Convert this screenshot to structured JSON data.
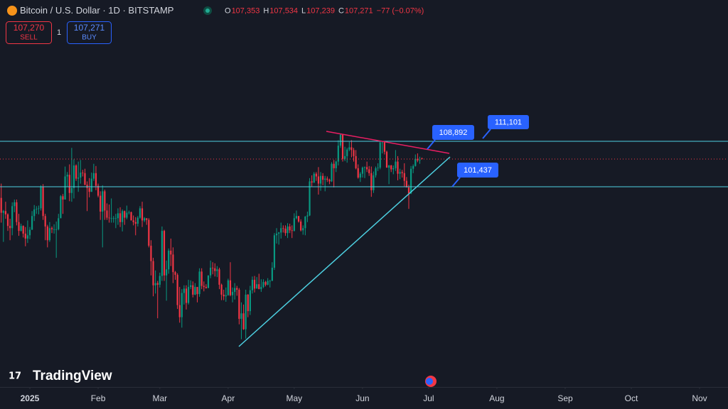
{
  "header": {
    "symbol": "Bitcoin / U.S. Dollar · 1D · BITSTAMP",
    "ohlc": [
      {
        "key": "O",
        "value": "107,353"
      },
      {
        "key": "H",
        "value": "107,534"
      },
      {
        "key": "L",
        "value": "107,239"
      },
      {
        "key": "C",
        "value": "107,271"
      }
    ],
    "change": "−77 (−0.07%)"
  },
  "trade": {
    "sell_price": "107,270",
    "sell_label": "SELL",
    "quantity": "1",
    "buy_price": "107,271",
    "buy_label": "BUY"
  },
  "callouts": [
    "108,892",
    "111,101",
    "101,437"
  ],
  "watermark": "TradingView",
  "chart_data": {
    "type": "candlestick",
    "up_color": "#089981",
    "down_color": "#f23645",
    "xlim": [
      -0.55,
      329.9
    ],
    "ylim": [
      65800,
      136200
    ],
    "xticks": [
      {
        "value": 13,
        "label": "2025"
      },
      {
        "value": 44,
        "label": "Feb"
      },
      {
        "value": 72,
        "label": "Mar"
      },
      {
        "value": 103,
        "label": "Apr"
      },
      {
        "value": 133,
        "label": "May"
      },
      {
        "value": 164,
        "label": "Jun"
      },
      {
        "value": 194,
        "label": "Jul"
      },
      {
        "value": 225,
        "label": "Aug"
      },
      {
        "value": 256,
        "label": "Sep"
      },
      {
        "value": 286,
        "label": "Oct"
      },
      {
        "value": 317,
        "label": "Nov"
      }
    ],
    "candles": [
      [
        100200,
        102800,
        95700,
        97500
      ],
      [
        97500,
        98000,
        92200,
        97800
      ],
      [
        97800,
        99500,
        96400,
        97200
      ],
      [
        97200,
        97400,
        94200,
        95100
      ],
      [
        95100,
        96400,
        92500,
        94700
      ],
      [
        94700,
        99400,
        93400,
        98700
      ],
      [
        98700,
        99900,
        97600,
        99400
      ],
      [
        99400,
        99900,
        95200,
        95800
      ],
      [
        95800,
        97300,
        93300,
        94200
      ],
      [
        94200,
        95500,
        94100,
        95100
      ],
      [
        95100,
        95200,
        93000,
        93700
      ],
      [
        93700,
        94900,
        91400,
        92800
      ],
      [
        92800,
        96100,
        92000,
        93400
      ],
      [
        93400,
        94900,
        92700,
        94400
      ],
      [
        94400,
        97800,
        94400,
        96900
      ],
      [
        96900,
        98900,
        96000,
        98100
      ],
      [
        98100,
        98700,
        97300,
        98200
      ],
      [
        98200,
        98800,
        97200,
        98300
      ],
      [
        98300,
        102500,
        97900,
        102200
      ],
      [
        102200,
        102700,
        96200,
        96900
      ],
      [
        96900,
        97300,
        92500,
        95000
      ],
      [
        95000,
        95300,
        91200,
        92500
      ],
      [
        92500,
        95800,
        92200,
        94700
      ],
      [
        94700,
        95000,
        93800,
        94500
      ],
      [
        94500,
        95400,
        93700,
        94500
      ],
      [
        94500,
        95900,
        89300,
        94500
      ],
      [
        94500,
        97300,
        94300,
        96500
      ],
      [
        96500,
        100700,
        96500,
        100500
      ],
      [
        100500,
        100900,
        97300,
        99900
      ],
      [
        99900,
        105900,
        99900,
        104100
      ],
      [
        104100,
        104900,
        102300,
        104400
      ],
      [
        104400,
        106300,
        99600,
        101100
      ],
      [
        101100,
        109300,
        99500,
        102000
      ],
      [
        102000,
        107200,
        100100,
        106100
      ],
      [
        106100,
        106300,
        103300,
        103700
      ],
      [
        103700,
        106800,
        101300,
        103900
      ],
      [
        103900,
        107100,
        102800,
        104800
      ],
      [
        104800,
        105300,
        104100,
        104700
      ],
      [
        104700,
        105500,
        102500,
        102600
      ],
      [
        102600,
        103200,
        97800,
        102000
      ],
      [
        102000,
        103800,
        100300,
        101300
      ],
      [
        101300,
        104800,
        101300,
        103700
      ],
      [
        103700,
        106400,
        103300,
        104700
      ],
      [
        104700,
        106000,
        101600,
        102400
      ],
      [
        102400,
        102800,
        100300,
        100600
      ],
      [
        100600,
        101400,
        96200,
        97700
      ],
      [
        97700,
        102500,
        91200,
        101400
      ],
      [
        101400,
        101700,
        96200,
        97900
      ],
      [
        97900,
        99200,
        96200,
        96600
      ],
      [
        96600,
        99000,
        95700,
        96500
      ],
      [
        96500,
        100100,
        95700,
        96500
      ],
      [
        96500,
        96900,
        95700,
        96500
      ],
      [
        96500,
        97300,
        94700,
        96500
      ],
      [
        96500,
        98300,
        95300,
        97400
      ],
      [
        97400,
        98500,
        94900,
        95800
      ],
      [
        95800,
        98100,
        94100,
        97800
      ],
      [
        97800,
        97900,
        95300,
        96600
      ],
      [
        96600,
        98800,
        96300,
        97500
      ],
      [
        97500,
        97900,
        97200,
        97600
      ],
      [
        97600,
        97700,
        96100,
        96100
      ],
      [
        96100,
        97000,
        95200,
        95800
      ],
      [
        95800,
        96700,
        93400,
        95500
      ],
      [
        95500,
        96900,
        95000,
        96600
      ],
      [
        96600,
        98700,
        96400,
        98300
      ],
      [
        98300,
        99500,
        94900,
        96100
      ],
      [
        96100,
        96700,
        95800,
        96500
      ],
      [
        96500,
        96500,
        95300,
        96200
      ],
      [
        96200,
        96500,
        91200,
        91500
      ],
      [
        91500,
        92500,
        86100,
        88700
      ],
      [
        88700,
        89300,
        82300,
        84300
      ],
      [
        84300,
        87000,
        82800,
        84700
      ],
      [
        84700,
        85100,
        78300,
        84400
      ],
      [
        84400,
        86600,
        83900,
        86000
      ],
      [
        86000,
        95000,
        85100,
        94200
      ],
      [
        94200,
        94400,
        85100,
        86100
      ],
      [
        86100,
        88800,
        81500,
        87200
      ],
      [
        87200,
        91000,
        86400,
        90600
      ],
      [
        90600,
        92800,
        87800,
        89900
      ],
      [
        89900,
        91200,
        84700,
        86700
      ],
      [
        86700,
        86900,
        85300,
        86200
      ],
      [
        86200,
        86500,
        80000,
        80700
      ],
      [
        80700,
        84000,
        77500,
        78500
      ],
      [
        78500,
        83600,
        76600,
        82900
      ],
      [
        82900,
        84300,
        80800,
        83700
      ],
      [
        83700,
        84300,
        79900,
        81100
      ],
      [
        81100,
        85300,
        80800,
        84000
      ],
      [
        84000,
        85200,
        83600,
        84300
      ],
      [
        84300,
        85000,
        82100,
        82600
      ],
      [
        82600,
        84700,
        82500,
        84000
      ],
      [
        84000,
        84000,
        81200,
        82700
      ],
      [
        82700,
        87400,
        82200,
        86800
      ],
      [
        86800,
        87400,
        83600,
        84200
      ],
      [
        84200,
        85000,
        83200,
        84000
      ],
      [
        84000,
        84500,
        83700,
        83800
      ],
      [
        83800,
        86100,
        83800,
        86100
      ],
      [
        86100,
        88800,
        85600,
        87500
      ],
      [
        87500,
        88500,
        86300,
        87400
      ],
      [
        87400,
        88300,
        85900,
        86900
      ],
      [
        86900,
        87800,
        85800,
        87200
      ],
      [
        87200,
        87500,
        83600,
        84400
      ],
      [
        84400,
        84600,
        81600,
        82600
      ],
      [
        82600,
        83500,
        81600,
        82300
      ],
      [
        82300,
        83900,
        81300,
        82500
      ],
      [
        82500,
        85500,
        82400,
        85200
      ],
      [
        85200,
        88500,
        82300,
        82500
      ],
      [
        82500,
        83900,
        81200,
        83100
      ],
      [
        83100,
        84700,
        81700,
        83800
      ],
      [
        83800,
        84200,
        82400,
        83500
      ],
      [
        83500,
        83800,
        77200,
        78200
      ],
      [
        78200,
        81200,
        74500,
        79200
      ],
      [
        79200,
        80800,
        76200,
        76300
      ],
      [
        76300,
        83500,
        74600,
        82600
      ],
      [
        82600,
        82700,
        78500,
        79600
      ],
      [
        79600,
        84200,
        78900,
        83400
      ],
      [
        83400,
        85900,
        82800,
        85300
      ],
      [
        85300,
        86000,
        83000,
        83700
      ],
      [
        83700,
        85800,
        83700,
        84500
      ],
      [
        84500,
        86400,
        83600,
        83600
      ],
      [
        83600,
        85400,
        83100,
        84000
      ],
      [
        84000,
        85400,
        83800,
        84900
      ],
      [
        84900,
        85100,
        84100,
        84400
      ],
      [
        84400,
        85600,
        84300,
        85100
      ],
      [
        85100,
        85300,
        83900,
        85100
      ],
      [
        85100,
        88500,
        85100,
        87500
      ],
      [
        87500,
        93800,
        87100,
        93400
      ],
      [
        93400,
        94700,
        91900,
        93700
      ],
      [
        93700,
        94000,
        91700,
        93900
      ],
      [
        93900,
        95700,
        92800,
        94700
      ],
      [
        94700,
        95200,
        93900,
        94600
      ],
      [
        94600,
        95200,
        93300,
        93800
      ],
      [
        93800,
        95600,
        92900,
        95000
      ],
      [
        95000,
        95500,
        93800,
        94300
      ],
      [
        94300,
        95200,
        92900,
        94200
      ],
      [
        94200,
        97400,
        94100,
        96500
      ],
      [
        96500,
        97900,
        96300,
        96900
      ],
      [
        96900,
        96900,
        95700,
        95900
      ],
      [
        95900,
        96300,
        94100,
        94300
      ],
      [
        94300,
        95200,
        93500,
        94700
      ],
      [
        94700,
        96900,
        93400,
        96800
      ],
      [
        96800,
        97700,
        95800,
        97000
      ],
      [
        97000,
        103800,
        96900,
        103200
      ],
      [
        103200,
        104300,
        102300,
        103000
      ],
      [
        103000,
        104900,
        102900,
        104600
      ],
      [
        104600,
        104900,
        103300,
        104100
      ],
      [
        104100,
        105800,
        100800,
        102800
      ],
      [
        102800,
        104900,
        101500,
        104200
      ],
      [
        104200,
        104700,
        102500,
        103500
      ],
      [
        103500,
        104200,
        101400,
        103700
      ],
      [
        103700,
        104100,
        103100,
        103500
      ],
      [
        103500,
        103700,
        102700,
        103200
      ],
      [
        103200,
        106700,
        103100,
        106400
      ],
      [
        106400,
        107100,
        102100,
        105600
      ],
      [
        105600,
        107000,
        104900,
        106800
      ],
      [
        106800,
        110700,
        106100,
        109700
      ],
      [
        109700,
        111900,
        109300,
        111700
      ],
      [
        111700,
        111800,
        106800,
        107300
      ],
      [
        107300,
        109500,
        106900,
        107800
      ],
      [
        107800,
        109300,
        106600,
        109000
      ],
      [
        109000,
        110400,
        108700,
        109400
      ],
      [
        109400,
        110700,
        107600,
        108900
      ],
      [
        108900,
        109300,
        106800,
        107800
      ],
      [
        107800,
        108900,
        105400,
        105600
      ],
      [
        105600,
        106300,
        103700,
        103900
      ],
      [
        103900,
        104900,
        103100,
        104600
      ],
      [
        104600,
        105900,
        103900,
        105700
      ],
      [
        105700,
        105900,
        103800,
        105800
      ],
      [
        105800,
        106800,
        104900,
        105400
      ],
      [
        105400,
        106000,
        104200,
        104700
      ],
      [
        104700,
        105900,
        100400,
        101600
      ],
      [
        101600,
        105000,
        101100,
        104300
      ],
      [
        104300,
        105900,
        103900,
        105600
      ],
      [
        105600,
        106500,
        105100,
        105700
      ],
      [
        105700,
        110500,
        105400,
        110300
      ],
      [
        110300,
        110400,
        108300,
        110300
      ],
      [
        110300,
        110400,
        108100,
        108600
      ],
      [
        108600,
        108800,
        105700,
        105700
      ],
      [
        105700,
        106200,
        102700,
        106100
      ],
      [
        106100,
        106200,
        104900,
        105400
      ],
      [
        105400,
        106100,
        104500,
        105600
      ],
      [
        105600,
        108900,
        105100,
        106800
      ],
      [
        106800,
        107800,
        103400,
        104600
      ],
      [
        104600,
        105500,
        103600,
        104900
      ],
      [
        104900,
        105300,
        103900,
        104700
      ],
      [
        104700,
        106500,
        102300,
        103300
      ],
      [
        103300,
        104000,
        102100,
        102100
      ],
      [
        102100,
        102600,
        98200,
        101000
      ],
      [
        101000,
        106000,
        100900,
        105500
      ],
      [
        105500,
        106300,
        104700,
        106000
      ],
      [
        106000,
        108100,
        105900,
        107300
      ],
      [
        107300,
        108300,
        106700,
        107000
      ],
      [
        107000,
        107700,
        106400,
        107100
      ],
      [
        107353,
        107534,
        107239,
        107271
      ]
    ]
  }
}
